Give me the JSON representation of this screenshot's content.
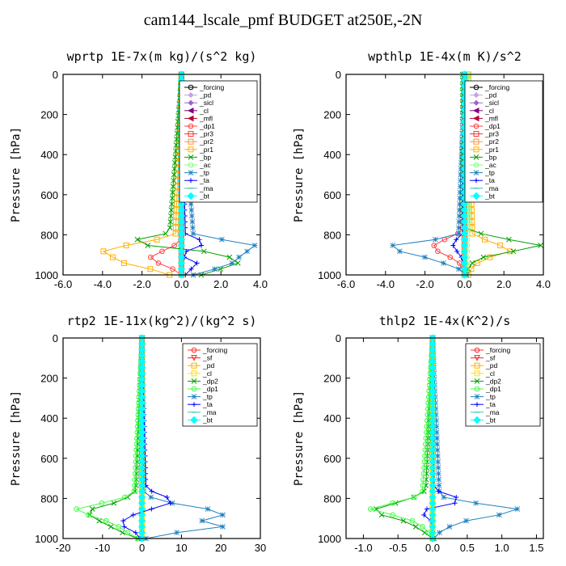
{
  "title": "cam144_lscale_pmf  BUDGET at250E,-2N",
  "chart_data": [
    {
      "type": "line",
      "title": "wprtp  1E-7x(m kg)/(s^2 kg)",
      "ylabel": "Pressure [hPa]",
      "xlim": [
        -6,
        4
      ],
      "ylim": [
        1000,
        0
      ],
      "xticks": [
        "-6.0",
        "-4.0",
        "-2.0",
        "0.0",
        "2.0",
        "4.0"
      ],
      "xtick_values": [
        -6,
        -4,
        -2,
        0,
        2,
        4
      ],
      "yticks": [
        "0",
        "200",
        "400",
        "600",
        "800",
        "1000"
      ],
      "ytick_values": [
        0,
        200,
        400,
        600,
        800,
        1000
      ],
      "legend_position": "top-right",
      "series": [
        {
          "name": "_forcing",
          "color": "#000000",
          "marker": "circle-open",
          "p": [
            0,
            1000
          ],
          "x": [
            0,
            0
          ]
        },
        {
          "name": "_pd",
          "color": "#c8a0e6",
          "marker": "diamond",
          "p": [
            0,
            1000
          ],
          "x": [
            0,
            0
          ]
        },
        {
          "name": "_sicl",
          "color": "#9966cc",
          "marker": "diamond",
          "p": [
            0,
            1000
          ],
          "x": [
            0,
            0
          ]
        },
        {
          "name": "_cl",
          "color": "#7f007f",
          "marker": "triangle-left",
          "p": [
            0,
            1000
          ],
          "x": [
            0,
            0
          ]
        },
        {
          "name": "_mfl",
          "color": "#b4003c",
          "marker": "triangle-left",
          "p": [
            0,
            1000
          ],
          "x": [
            0,
            0
          ]
        },
        {
          "name": "_dp1",
          "color": "#ff4040",
          "marker": "circle-open",
          "p": [
            0,
            820,
            850,
            880,
            900,
            930,
            960,
            1000
          ],
          "x": [
            0,
            0,
            -0.3,
            -0.9,
            -1.6,
            -1.5,
            -0.6,
            0
          ]
        },
        {
          "name": "_pr3",
          "color": "#ff3030",
          "marker": "square-open",
          "p": [
            0,
            1000
          ],
          "x": [
            0,
            0
          ]
        },
        {
          "name": "_pr2",
          "color": "#ff9040",
          "marker": "square-open",
          "p": [
            0,
            1000
          ],
          "x": [
            0,
            0
          ]
        },
        {
          "name": "_pr1",
          "color": "#ffb000",
          "marker": "square-open",
          "p": [
            0,
            800,
            830,
            860,
            880,
            900,
            930,
            950,
            970,
            1000
          ],
          "x": [
            0,
            -0.3,
            -1.5,
            -3.2,
            -4.0,
            -3.6,
            -3.3,
            -2.6,
            -1.6,
            -0.6
          ]
        },
        {
          "name": "_bp",
          "color": "#00a000",
          "marker": "x",
          "p": [
            0,
            790,
            810,
            840,
            860,
            880,
            900,
            920,
            940,
            970,
            1000
          ],
          "x": [
            0,
            -0.6,
            -1.6,
            -3.0,
            -1.0,
            1.0,
            2.2,
            2.6,
            2.9,
            2.0,
            1.0
          ]
        },
        {
          "name": "_ac",
          "color": "#80ff80",
          "marker": "circle-open",
          "p": [
            0,
            1000
          ],
          "x": [
            0,
            0
          ]
        },
        {
          "name": "_tp",
          "color": "#2080c0",
          "marker": "asterisk",
          "p": [
            0,
            800,
            820,
            840,
            860,
            880,
            900,
            920,
            940,
            960,
            980,
            1000
          ],
          "x": [
            0,
            0.6,
            1.8,
            3.2,
            4.0,
            3.4,
            2.8,
            3.0,
            2.6,
            2.0,
            1.4,
            0.6
          ]
        },
        {
          "name": "_ta",
          "color": "#0000ff",
          "marker": "plus",
          "p": [
            0,
            800,
            820,
            840,
            860,
            880,
            900,
            920,
            940,
            970,
            1000
          ],
          "x": [
            0,
            0.2,
            0.8,
            1.4,
            0.8,
            0.3,
            -0.2,
            0.4,
            0.8,
            0.5,
            0.2
          ]
        },
        {
          "name": "_ma",
          "color": "#40c0c0",
          "marker": "dash",
          "p": [
            0,
            1000
          ],
          "x": [
            0,
            0
          ]
        },
        {
          "name": "_bt",
          "color": "#00ffff",
          "marker": "diamond-filled",
          "p": [
            0,
            1000
          ],
          "x": [
            0,
            0
          ]
        }
      ]
    },
    {
      "type": "line",
      "title": "wpthlp  1E-4x(m K)/s^2",
      "ylabel": "Pressure [hPa]",
      "xlim": [
        -6,
        4
      ],
      "ylim": [
        1000,
        0
      ],
      "xticks": [
        "-6.0",
        "-4.0",
        "-2.0",
        "0.0",
        "2.0",
        "4.0"
      ],
      "xtick_values": [
        -6,
        -4,
        -2,
        0,
        2,
        4
      ],
      "yticks": [
        "0",
        "200",
        "400",
        "600",
        "800",
        "1000"
      ],
      "ytick_values": [
        0,
        200,
        400,
        600,
        800,
        1000
      ],
      "legend_position": "top-right",
      "series": [
        {
          "name": "_forcing",
          "color": "#000000",
          "marker": "circle-open",
          "p": [
            0,
            1000
          ],
          "x": [
            0,
            0
          ]
        },
        {
          "name": "_pd",
          "color": "#c8a0e6",
          "marker": "diamond",
          "p": [
            0,
            1000
          ],
          "x": [
            0,
            0
          ]
        },
        {
          "name": "_sicl",
          "color": "#9966cc",
          "marker": "diamond",
          "p": [
            0,
            1000
          ],
          "x": [
            0,
            0
          ]
        },
        {
          "name": "_cl",
          "color": "#7f007f",
          "marker": "triangle-left",
          "p": [
            0,
            1000
          ],
          "x": [
            0,
            0
          ]
        },
        {
          "name": "_mfl",
          "color": "#b4003c",
          "marker": "triangle-left",
          "p": [
            0,
            1000
          ],
          "x": [
            0,
            0
          ]
        },
        {
          "name": "_dp1",
          "color": "#ff4040",
          "marker": "circle-open",
          "p": [
            0,
            780,
            810,
            840,
            870,
            900,
            930,
            1000
          ],
          "x": [
            0,
            -0.1,
            -0.6,
            -1.5,
            -1.6,
            -1.0,
            -0.3,
            0
          ]
        },
        {
          "name": "_pr3",
          "color": "#ff3030",
          "marker": "square-open",
          "p": [
            0,
            1000
          ],
          "x": [
            0,
            0
          ]
        },
        {
          "name": "_pr2",
          "color": "#ff9040",
          "marker": "square-open",
          "p": [
            0,
            1000
          ],
          "x": [
            0,
            0
          ]
        },
        {
          "name": "_pr1",
          "color": "#ffb000",
          "marker": "square-open",
          "p": [
            0,
            800,
            830,
            860,
            880,
            900,
            930,
            960,
            1000
          ],
          "x": [
            0.2,
            0.4,
            1.2,
            2.0,
            2.4,
            1.6,
            0.8,
            0.4,
            0.2
          ]
        },
        {
          "name": "_bp",
          "color": "#00a000",
          "marker": "x",
          "p": [
            0,
            760,
            800,
            830,
            850,
            880,
            910,
            940,
            970,
            1000
          ],
          "x": [
            -0.1,
            -0.1,
            1.0,
            2.6,
            4.0,
            2.6,
            1.0,
            0.4,
            0.2,
            0.1
          ]
        },
        {
          "name": "_ac",
          "color": "#80ff80",
          "marker": "circle-open",
          "p": [
            0,
            100,
            200,
            300,
            400,
            500,
            600,
            700,
            1000
          ],
          "x": [
            0.2,
            0.3,
            0.2,
            0.3,
            0.2,
            0.3,
            0.2,
            0.2,
            0.1
          ]
        },
        {
          "name": "_tp",
          "color": "#2080c0",
          "marker": "asterisk",
          "p": [
            0,
            800,
            830,
            860,
            880,
            900,
            930,
            960,
            980,
            1000
          ],
          "x": [
            0,
            -0.3,
            -1.8,
            -4.2,
            -3.4,
            -2.4,
            -1.4,
            -0.5,
            -0.1,
            0.1
          ]
        },
        {
          "name": "_ta",
          "color": "#0000ff",
          "marker": "plus",
          "p": [
            0,
            800,
            830,
            860,
            880,
            900,
            930,
            960,
            1000
          ],
          "x": [
            0,
            -0.1,
            -0.5,
            -0.6,
            -0.4,
            -0.2,
            -0.1,
            0,
            0
          ]
        },
        {
          "name": "_ma",
          "color": "#40c0c0",
          "marker": "dash",
          "p": [
            0,
            1000
          ],
          "x": [
            0,
            0
          ]
        },
        {
          "name": "_bt",
          "color": "#00ffff",
          "marker": "diamond-filled",
          "p": [
            0,
            1000
          ],
          "x": [
            0,
            0
          ]
        }
      ]
    },
    {
      "type": "line",
      "title": "rtp2  1E-11x(kg^2)/(kg^2 s)",
      "ylabel": "Pressure [hPa]",
      "xlim": [
        -20,
        30
      ],
      "ylim": [
        1000,
        0
      ],
      "xticks": [
        "-20",
        "-10",
        "0",
        "10",
        "20",
        "30"
      ],
      "xtick_values": [
        -20,
        -10,
        0,
        10,
        20,
        30
      ],
      "yticks": [
        "0",
        "200",
        "400",
        "600",
        "800",
        "1000"
      ],
      "ytick_values": [
        0,
        200,
        400,
        600,
        800,
        1000
      ],
      "legend_position": "top-right",
      "series": [
        {
          "name": "_forcing",
          "color": "#ff3030",
          "marker": "circle-open",
          "p": [
            0,
            1000
          ],
          "x": [
            0,
            0
          ]
        },
        {
          "name": "_sf",
          "color": "#ff2020",
          "marker": "triangle-down",
          "p": [
            0,
            1000
          ],
          "x": [
            0,
            0
          ]
        },
        {
          "name": "_pd",
          "color": "#ffb000",
          "marker": "square-open",
          "p": [
            0,
            1000
          ],
          "x": [
            0,
            0
          ]
        },
        {
          "name": "_cl",
          "color": "#ffe000",
          "marker": "square-open",
          "p": [
            0,
            1000
          ],
          "x": [
            0,
            0
          ]
        },
        {
          "name": "_dp2",
          "color": "#00a000",
          "marker": "x",
          "p": [
            0,
            760,
            800,
            830,
            860,
            890,
            920,
            950,
            980,
            1000
          ],
          "x": [
            0,
            -1.5,
            -4.0,
            -8.0,
            -14.0,
            -13.0,
            -10.0,
            -7.0,
            -4.0,
            -1.0
          ]
        },
        {
          "name": "_dp1",
          "color": "#40ff40",
          "marker": "circle-open",
          "p": [
            0,
            780,
            810,
            840,
            860,
            890,
            920,
            950,
            980,
            1000
          ],
          "x": [
            0,
            -2.0,
            -7.0,
            -14.0,
            -18.0,
            -12.0,
            -8.0,
            -5.0,
            -3.0,
            -1.0
          ]
        },
        {
          "name": "_tp",
          "color": "#2080c0",
          "marker": "asterisk",
          "p": [
            0,
            780,
            800,
            830,
            860,
            890,
            920,
            940,
            960,
            980,
            1000
          ],
          "x": [
            0,
            0.5,
            3.0,
            9.0,
            19.0,
            21.0,
            13.0,
            21.0,
            12.0,
            6.0,
            1.0
          ]
        },
        {
          "name": "_ta",
          "color": "#0000ff",
          "marker": "plus",
          "p": [
            0,
            750,
            780,
            810,
            840,
            870,
            900,
            930,
            960,
            1000
          ],
          "x": [
            0,
            1.0,
            4.0,
            9.0,
            5.0,
            -1.0,
            -4.0,
            -6.0,
            -2.0,
            -0.5
          ]
        },
        {
          "name": "_ma",
          "color": "#40c0c0",
          "marker": "dash",
          "p": [
            0,
            1000
          ],
          "x": [
            0,
            0
          ]
        },
        {
          "name": "_bt",
          "color": "#00ffff",
          "marker": "diamond-filled",
          "p": [
            0,
            1000
          ],
          "x": [
            0,
            0
          ]
        }
      ]
    },
    {
      "type": "line",
      "title": "thlp2  1E-4x(K^2)/s",
      "ylabel": "Pressure [hPa]",
      "xlim": [
        -1.25,
        1.6
      ],
      "ylim": [
        1000,
        0
      ],
      "xticks": [
        "-1.0",
        "-0.5",
        "0.0",
        "0.5",
        "1.0",
        "1.5"
      ],
      "xtick_values": [
        -1,
        -0.5,
        0,
        0.5,
        1,
        1.5
      ],
      "yticks": [
        "0",
        "200",
        "400",
        "600",
        "800",
        "1000"
      ],
      "ytick_values": [
        0,
        200,
        400,
        600,
        800,
        1000
      ],
      "legend_position": "top-right",
      "series": [
        {
          "name": "_forcing",
          "color": "#ff3030",
          "marker": "circle-open",
          "p": [
            0,
            1000
          ],
          "x": [
            0,
            0
          ]
        },
        {
          "name": "_sf",
          "color": "#ff2020",
          "marker": "triangle-down",
          "p": [
            0,
            1000
          ],
          "x": [
            0,
            0
          ]
        },
        {
          "name": "_pd",
          "color": "#ffb000",
          "marker": "square-open",
          "p": [
            0,
            1000
          ],
          "x": [
            0,
            0
          ]
        },
        {
          "name": "_cl",
          "color": "#ffe000",
          "marker": "square-open",
          "p": [
            0,
            1000
          ],
          "x": [
            0,
            0
          ]
        },
        {
          "name": "_dp2",
          "color": "#00a000",
          "marker": "x",
          "p": [
            0,
            760,
            800,
            830,
            850,
            870,
            900,
            930,
            960,
            990,
            1000
          ],
          "x": [
            0,
            -0.1,
            -0.3,
            -0.6,
            -0.8,
            -0.9,
            -0.5,
            -0.3,
            -0.15,
            -0.05,
            0
          ]
        },
        {
          "name": "_dp1",
          "color": "#40ff40",
          "marker": "circle-open",
          "p": [
            0,
            780,
            810,
            840,
            860,
            880,
            910,
            940,
            970,
            1000
          ],
          "x": [
            0,
            -0.15,
            -0.4,
            -0.8,
            -0.95,
            -0.6,
            -0.3,
            -0.15,
            -0.05,
            0
          ]
        },
        {
          "name": "_tp",
          "color": "#2080c0",
          "marker": "asterisk",
          "p": [
            0,
            790,
            810,
            840,
            860,
            880,
            910,
            940,
            970,
            1000
          ],
          "x": [
            0,
            0.1,
            0.4,
            0.9,
            1.4,
            1.0,
            0.5,
            0.25,
            0.1,
            0.02
          ]
        },
        {
          "name": "_ta",
          "color": "#0000ff",
          "marker": "plus",
          "p": [
            0,
            740,
            770,
            800,
            830,
            860,
            890,
            920,
            960,
            1000
          ],
          "x": [
            0,
            0.02,
            0.1,
            0.4,
            0.3,
            -0.2,
            -0.1,
            0,
            0,
            0
          ]
        },
        {
          "name": "_ma",
          "color": "#40c0c0",
          "marker": "dash",
          "p": [
            0,
            1000
          ],
          "x": [
            0,
            0
          ]
        },
        {
          "name": "_bt",
          "color": "#00ffff",
          "marker": "diamond-filled",
          "p": [
            0,
            1000
          ],
          "x": [
            0,
            0
          ]
        }
      ]
    }
  ]
}
